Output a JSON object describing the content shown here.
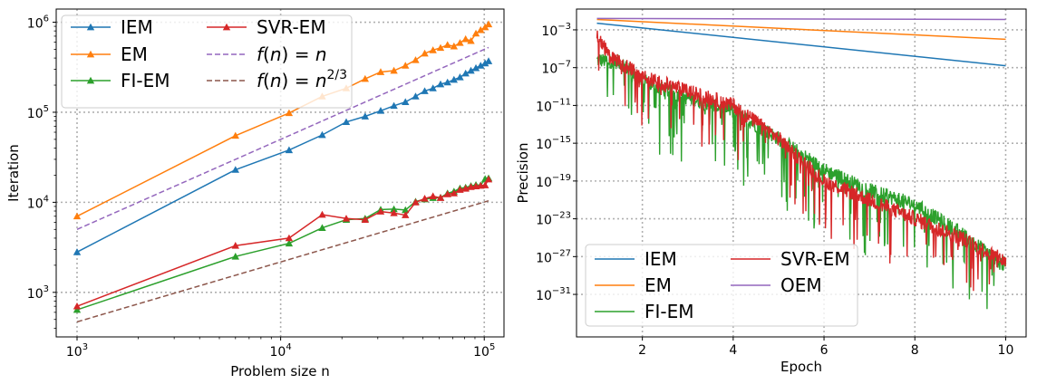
{
  "chart_data": [
    {
      "type": "line",
      "xlabel": "Problem size n",
      "ylabel": "Iteration",
      "xscale": "log",
      "yscale": "log",
      "xlim": [
        790,
        125000
      ],
      "ylim": [
        320,
        1400000
      ],
      "xticks": [
        {
          "base": "10",
          "exp": "3",
          "value": 1000
        },
        {
          "base": "10",
          "exp": "4",
          "value": 10000
        },
        {
          "base": "10",
          "exp": "5",
          "value": 100000
        }
      ],
      "yticks": [
        {
          "base": "10",
          "exp": "3",
          "value": 1000
        },
        {
          "base": "10",
          "exp": "4",
          "value": 10000
        },
        {
          "base": "10",
          "exp": "5",
          "value": 100000
        },
        {
          "base": "10",
          "exp": "6",
          "value": 1000000
        }
      ],
      "grid": true,
      "legend_position": "top-left",
      "legend_columns": 2,
      "series": [
        {
          "name": "IEM",
          "color": "#1f77b4",
          "marker": "triangle",
          "x": [
            1000,
            6000,
            11000,
            16000,
            21000,
            26000,
            31000,
            36000,
            41000,
            46000,
            51000,
            56000,
            61000,
            66000,
            71000,
            76000,
            81000,
            86000,
            91000,
            96000,
            101000,
            105000
          ],
          "y": [
            2800,
            23000,
            38000,
            56000,
            78000,
            90000,
            104000,
            118000,
            130000,
            150000,
            172000,
            185000,
            205000,
            215000,
            230000,
            245000,
            270000,
            290000,
            310000,
            330000,
            350000,
            370000
          ]
        },
        {
          "name": "EM",
          "color": "#ff7f0e",
          "marker": "triangle",
          "x": [
            1000,
            6000,
            11000,
            16000,
            21000,
            26000,
            31000,
            36000,
            41000,
            46000,
            51000,
            56000,
            61000,
            66000,
            71000,
            76000,
            81000,
            86000,
            91000,
            96000,
            101000,
            105000
          ],
          "y": [
            7000,
            55000,
            98000,
            150000,
            185000,
            235000,
            280000,
            290000,
            330000,
            380000,
            450000,
            490000,
            520000,
            560000,
            540000,
            590000,
            650000,
            620000,
            750000,
            820000,
            880000,
            950000
          ]
        },
        {
          "name": "FI-EM",
          "color": "#2ca02c",
          "marker": "triangle",
          "x": [
            1000,
            6000,
            11000,
            16000,
            21000,
            26000,
            31000,
            36000,
            41000,
            46000,
            51000,
            56000,
            61000,
            66000,
            71000,
            76000,
            81000,
            86000,
            91000,
            96000,
            101000,
            105000
          ],
          "y": [
            640,
            2500,
            3500,
            5200,
            6400,
            6600,
            8300,
            8400,
            8200,
            10200,
            10800,
            11200,
            11300,
            12600,
            13200,
            14300,
            14600,
            15200,
            15600,
            15500,
            18200,
            18500
          ]
        },
        {
          "name": "SVR-EM",
          "color": "#d62728",
          "marker": "triangle",
          "x": [
            1000,
            6000,
            11000,
            16000,
            21000,
            26000,
            31000,
            36000,
            41000,
            46000,
            51000,
            56000,
            61000,
            66000,
            71000,
            76000,
            81000,
            86000,
            91000,
            96000,
            101000,
            105000
          ],
          "y": [
            700,
            3300,
            4000,
            7300,
            6600,
            6400,
            7900,
            7600,
            7200,
            10000,
            11000,
            11700,
            11200,
            12300,
            12600,
            13800,
            14200,
            14800,
            15100,
            15300,
            15500,
            18000
          ]
        },
        {
          "name": "f(n) = n",
          "name_func": "f",
          "name_arg": "n",
          "name_rhs": "n",
          "name_exp": "",
          "color": "#9467bd",
          "dashed": true,
          "x": [
            1000,
            105000
          ],
          "y": [
            5000,
            525000
          ]
        },
        {
          "name": "f(n) = n^{2/3}",
          "name_func": "f",
          "name_arg": "n",
          "name_rhs": "n",
          "name_exp": "2/3",
          "color": "#8c564b",
          "dashed": true,
          "x": [
            1000,
            105000
          ],
          "y": [
            470,
            10400
          ]
        }
      ]
    },
    {
      "type": "line",
      "xlabel": "Epoch",
      "ylabel": "Precision",
      "xscale": "linear",
      "yscale": "log",
      "xlim": [
        0.55,
        10.45
      ],
      "ylim_exp": [
        -35.5,
        -0.8
      ],
      "xticks": [
        {
          "label": "2",
          "value": 2
        },
        {
          "label": "4",
          "value": 4
        },
        {
          "label": "6",
          "value": 6
        },
        {
          "label": "8",
          "value": 8
        },
        {
          "label": "10",
          "value": 10
        }
      ],
      "yticks": [
        {
          "base": "10",
          "exp": "−3",
          "value": -3
        },
        {
          "base": "10",
          "exp": "−7",
          "value": -7
        },
        {
          "base": "10",
          "exp": "−11",
          "value": -11
        },
        {
          "base": "10",
          "exp": "−15",
          "value": -15
        },
        {
          "base": "10",
          "exp": "−19",
          "value": -19
        },
        {
          "base": "10",
          "exp": "−23",
          "value": -23
        },
        {
          "base": "10",
          "exp": "−27",
          "value": -27
        },
        {
          "base": "10",
          "exp": "−31",
          "value": -31
        }
      ],
      "grid": true,
      "legend_position": "bottom-left",
      "legend_columns": 2,
      "y_values_are_log10": true,
      "series": [
        {
          "name": "IEM",
          "color": "#1f77b4",
          "x": [
            1,
            10
          ],
          "log10_y": [
            -2.3,
            -6.8
          ]
        },
        {
          "name": "EM",
          "color": "#ff7f0e",
          "x": [
            1,
            10
          ],
          "log10_y": [
            -1.9,
            -4.0
          ]
        },
        {
          "name": "FI-EM",
          "color": "#2ca02c",
          "x": [
            1.0,
            1.5,
            2.0,
            3.0,
            4.0,
            5.0,
            6.0,
            7.0,
            8.0,
            9.0,
            10.0
          ],
          "log10_y": [
            -6.2,
            -6.4,
            -8.5,
            -10.2,
            -11.6,
            -14.5,
            -17.8,
            -20.0,
            -21.5,
            -24.5,
            -28.0
          ]
        },
        {
          "name": "SVR-EM",
          "color": "#d62728",
          "x": [
            1.0,
            1.3,
            2.0,
            3.0,
            4.0,
            5.0,
            6.0,
            7.0,
            8.0,
            9.0,
            10.0
          ],
          "log10_y": [
            -3.5,
            -5.8,
            -8.0,
            -9.5,
            -11.0,
            -14.5,
            -19.0,
            -21.0,
            -23.0,
            -25.0,
            -27.5
          ]
        },
        {
          "name": "OEM",
          "color": "#9467bd",
          "x": [
            1,
            10
          ],
          "log10_y": [
            -1.8,
            -1.9
          ]
        }
      ]
    }
  ]
}
